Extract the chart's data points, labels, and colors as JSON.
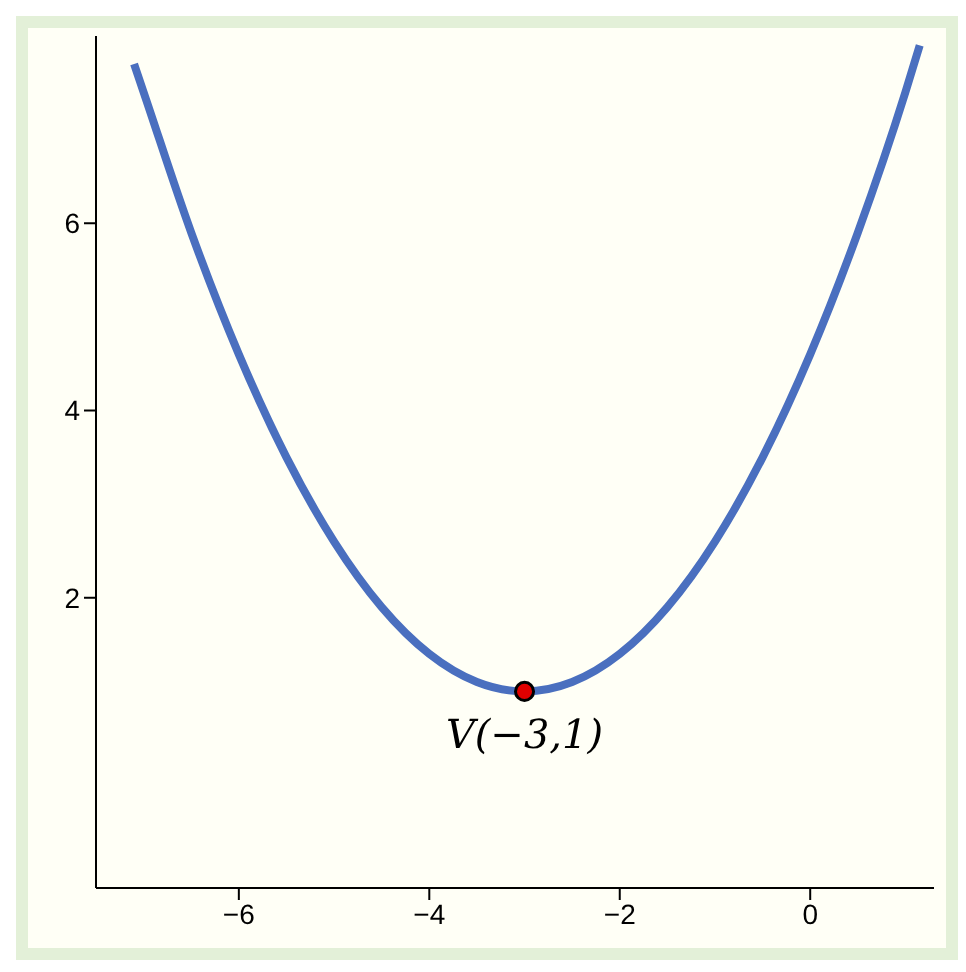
{
  "chart_data": {
    "type": "line",
    "xlim": [
      -7.5,
      1.3
    ],
    "ylim": [
      -1.1,
      8
    ],
    "xticks": [
      -6,
      -4,
      -2,
      0
    ],
    "yticks": [
      2,
      4,
      6
    ],
    "grid": false,
    "legend": false,
    "series": [
      {
        "marker": "none",
        "color": "#4a6fbf",
        "x": [
          -7.1,
          -7,
          -6.5,
          -6,
          -5.5,
          -5,
          -4.5,
          -4,
          -3.5,
          -3,
          -2.5,
          -2,
          -1.5,
          -1,
          -0.5,
          0,
          0.5,
          1,
          1.15
        ],
        "values": [
          7.7,
          7.4,
          5.9,
          4.6,
          3.5,
          2.6,
          1.9,
          1.4,
          1.1,
          1,
          1.1,
          1.4,
          1.9,
          2.6,
          3.5,
          4.6,
          5.9,
          7.4,
          7.9
        ]
      },
      {
        "type": "scatter",
        "marker": "circle",
        "color": "#e00000",
        "x": [
          -3
        ],
        "values": [
          1
        ]
      }
    ],
    "annotations": [
      {
        "text": "V(−3,1)",
        "x": -3,
        "y": 1
      }
    ]
  }
}
